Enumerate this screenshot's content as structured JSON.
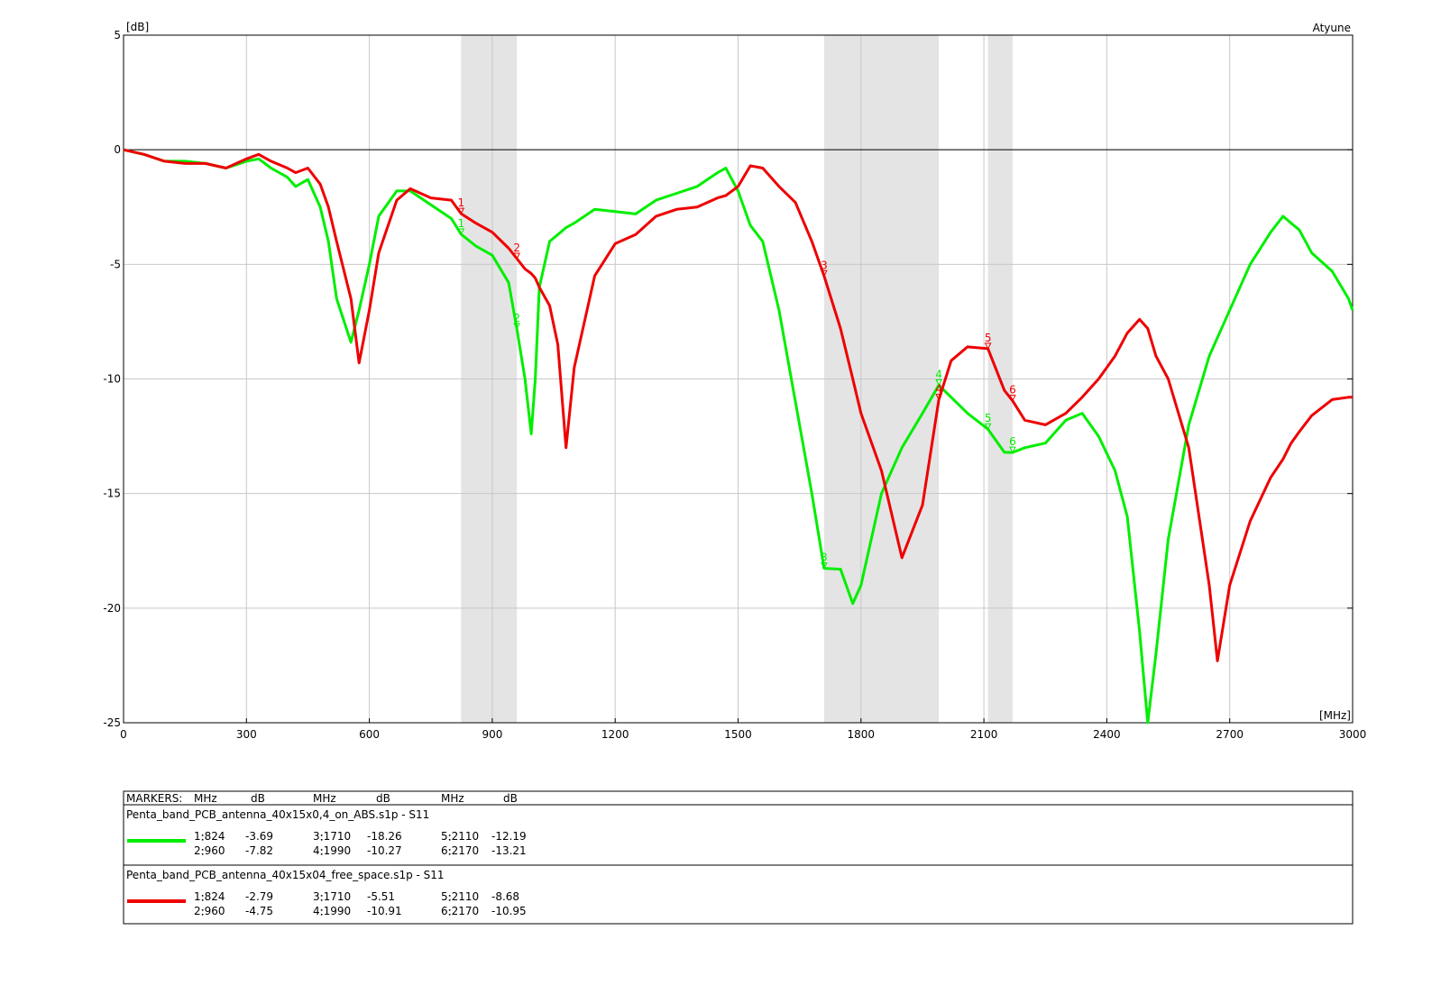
{
  "chart_data": {
    "type": "line",
    "y_unit": "[dB]",
    "x_unit": "[MHz]",
    "corner_label": "Atyune",
    "xlim": [
      0,
      3000
    ],
    "ylim": [
      -25,
      5
    ],
    "xticks": [
      0,
      300,
      600,
      900,
      1200,
      1500,
      1800,
      2100,
      2400,
      2700,
      3000
    ],
    "yticks": [
      -25,
      -20,
      -15,
      -10,
      -5,
      0,
      5
    ],
    "grid": true,
    "bands": [
      [
        824,
        960
      ],
      [
        1710,
        1990
      ],
      [
        2110,
        2170
      ]
    ],
    "band_color": "#e4e4e4",
    "x": [
      0,
      50,
      100,
      150,
      200,
      250,
      300,
      330,
      360,
      400,
      420,
      450,
      480,
      500,
      520,
      555,
      575,
      600,
      623,
      667,
      700,
      750,
      800,
      824,
      860,
      900,
      940,
      960,
      980,
      995,
      1005,
      1015,
      1040,
      1060,
      1080,
      1100,
      1150,
      1200,
      1250,
      1300,
      1350,
      1400,
      1450,
      1470,
      1500,
      1530,
      1560,
      1600,
      1640,
      1680,
      1710,
      1750,
      1780,
      1800,
      1850,
      1900,
      1950,
      1990,
      2020,
      2060,
      2110,
      2150,
      2170,
      2200,
      2250,
      2300,
      2340,
      2380,
      2420,
      2450,
      2480,
      2500,
      2520,
      2550,
      2600,
      2650,
      2670,
      2700,
      2750,
      2800,
      2830,
      2850,
      2870,
      2900,
      2950,
      2990,
      3000
    ],
    "marker_ids": [
      "1",
      "2",
      "3",
      "4",
      "5",
      "6"
    ],
    "markers_x": [
      824,
      960,
      1710,
      1990,
      2110,
      2170
    ],
    "marker_table": {
      "title": "MARKERS:",
      "headers": [
        "MHz",
        "dB",
        "MHz",
        "dB",
        "MHz",
        "dB"
      ]
    },
    "series": [
      {
        "name": "Penta_band_PCB_antenna_40x15x0,4_on_ABS.s1p - S11",
        "color": "#00ee00",
        "values": [
          0,
          -0.2,
          -0.5,
          -0.5,
          -0.6,
          -0.8,
          -0.5,
          -0.4,
          -0.8,
          -1.2,
          -1.6,
          -1.3,
          -2.5,
          -4,
          -6.5,
          -8.4,
          -7,
          -5,
          -2.9,
          -1.8,
          -1.8,
          -2.4,
          -3.0,
          -3.69,
          -4.2,
          -4.6,
          -5.8,
          -7.82,
          -10,
          -12.4,
          -10,
          -6,
          -4,
          -3.7,
          -3.4,
          -3.2,
          -2.6,
          -2.7,
          -2.8,
          -2.2,
          -1.9,
          -1.6,
          -1.0,
          -0.8,
          -1.8,
          -3.3,
          -4.0,
          -7,
          -11,
          -15,
          -18.26,
          -18.3,
          -19.8,
          -19,
          -15,
          -13,
          -11.5,
          -10.27,
          -10.8,
          -11.5,
          -12.19,
          -13.2,
          -13.21,
          -13,
          -12.8,
          -11.8,
          -11.5,
          -12.5,
          -14,
          -16,
          -21,
          -25,
          -22,
          -17,
          -12,
          -9,
          -8.2,
          -7,
          -5,
          -3.6,
          -2.9,
          -3.2,
          -3.5,
          -4.5,
          -5.3,
          -6.5,
          -7
        ],
        "marker_values": [
          -3.69,
          -7.82,
          -18.26,
          -10.27,
          -12.19,
          -13.21
        ]
      },
      {
        "name": "Penta_band_PCB_antenna_40x15x04_free_space.s1p - S11",
        "color": "#ee0000",
        "values": [
          0,
          -0.2,
          -0.5,
          -0.6,
          -0.6,
          -0.8,
          -0.4,
          -0.2,
          -0.5,
          -0.8,
          -1.0,
          -0.8,
          -1.5,
          -2.5,
          -4,
          -6.5,
          -9.3,
          -7,
          -4.5,
          -2.2,
          -1.7,
          -2.1,
          -2.2,
          -2.79,
          -3.2,
          -3.6,
          -4.3,
          -4.75,
          -5.2,
          -5.4,
          -5.6,
          -6,
          -6.8,
          -8.5,
          -13,
          -9.5,
          -5.5,
          -4.1,
          -3.7,
          -2.9,
          -2.6,
          -2.5,
          -2.1,
          -2.0,
          -1.6,
          -0.7,
          -0.8,
          -1.6,
          -2.3,
          -4,
          -5.51,
          -7.8,
          -10,
          -11.5,
          -14,
          -17.8,
          -15.5,
          -10.91,
          -9.2,
          -8.6,
          -8.68,
          -10.5,
          -10.95,
          -11.8,
          -12,
          -11.5,
          -10.8,
          -10,
          -9,
          -8,
          -7.4,
          -7.8,
          -9,
          -10,
          -13,
          -19,
          -22.3,
          -19,
          -16.2,
          -14.3,
          -13.5,
          -12.8,
          -12.3,
          -11.6,
          -10.9,
          -10.8,
          -10.8
        ],
        "marker_values": [
          -2.79,
          -4.75,
          -5.51,
          -10.91,
          -8.68,
          -10.95
        ]
      }
    ]
  }
}
